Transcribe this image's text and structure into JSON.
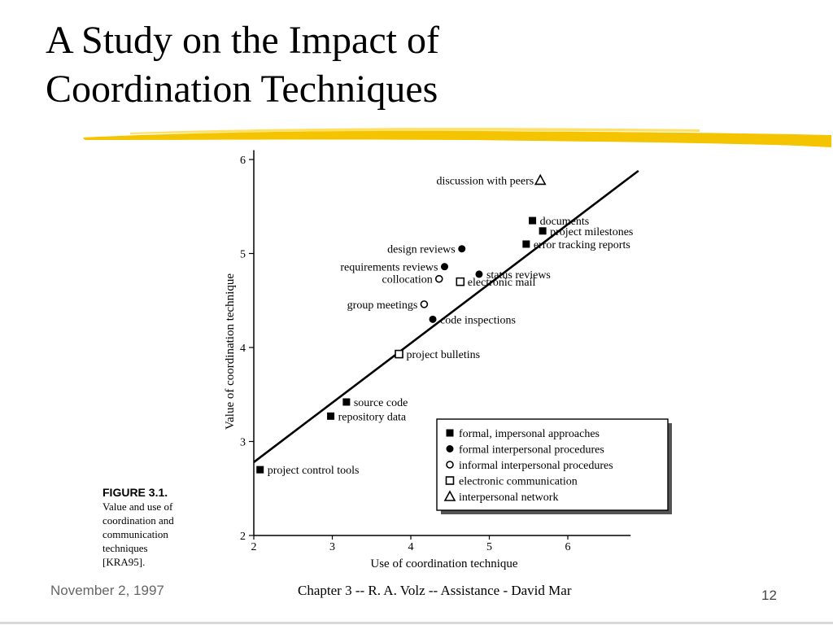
{
  "slide": {
    "title_line1": "A Study on the Impact of",
    "title_line2": "Coordination Techniques"
  },
  "colors": {
    "brush": "#f5c400",
    "brush_light": "#ffe066",
    "ink": "#000000"
  },
  "figure": {
    "caption_head": "FIGURE 3.1.",
    "caption_lines": [
      "Value and use of",
      "coordination and",
      "communication",
      "techniques",
      "[KRA95]."
    ]
  },
  "footer": {
    "date": "November 2, 1997",
    "center": "Chapter 3 -- R. A. Volz -- Assistance - David Mar",
    "page": "12"
  },
  "chart_data": {
    "type": "scatter",
    "xlabel": "Use of coordination technique",
    "ylabel": "Value of coordination technique",
    "xlim": [
      2,
      6.8
    ],
    "ylim": [
      2,
      6.1
    ],
    "x_ticks": [
      2,
      3,
      4,
      5,
      6
    ],
    "y_ticks": [
      2,
      3,
      4,
      5,
      6
    ],
    "trend_line": {
      "x": [
        2,
        6.9
      ],
      "y": [
        2.78,
        5.88
      ]
    },
    "legend": [
      {
        "marker": "square-filled",
        "label": "formal, impersonal approaches"
      },
      {
        "marker": "circle-filled",
        "label": "formal interpersonal procedures"
      },
      {
        "marker": "circle-open",
        "label": "informal interpersonal procedures"
      },
      {
        "marker": "square-open",
        "label": "electronic communication"
      },
      {
        "marker": "triangle-open",
        "label": "interpersonal network"
      }
    ],
    "points": [
      {
        "label": "discussion with peers",
        "x": 5.65,
        "y": 5.78,
        "marker": "triangle-open",
        "label_side": "left"
      },
      {
        "label": "documents",
        "x": 5.55,
        "y": 5.35,
        "marker": "square-filled",
        "label_side": "right"
      },
      {
        "label": "project milestones",
        "x": 5.68,
        "y": 5.24,
        "marker": "square-filled",
        "label_side": "right"
      },
      {
        "label": "error tracking reports",
        "x": 5.47,
        "y": 5.1,
        "marker": "square-filled",
        "label_side": "right"
      },
      {
        "label": "design reviews",
        "x": 4.65,
        "y": 5.05,
        "marker": "circle-filled",
        "label_side": "left"
      },
      {
        "label": "requirements reviews",
        "x": 4.43,
        "y": 4.86,
        "marker": "circle-filled",
        "label_side": "left"
      },
      {
        "label": "status reviews",
        "x": 4.87,
        "y": 4.78,
        "marker": "circle-filled",
        "label_side": "right"
      },
      {
        "label": "collocation",
        "x": 4.36,
        "y": 4.73,
        "marker": "circle-open",
        "label_side": "left"
      },
      {
        "label": "electronic mail",
        "x": 4.63,
        "y": 4.7,
        "marker": "square-open",
        "label_side": "right"
      },
      {
        "label": "group meetings",
        "x": 4.17,
        "y": 4.46,
        "marker": "circle-open",
        "label_side": "left"
      },
      {
        "label": "code inspections",
        "x": 4.28,
        "y": 4.3,
        "marker": "circle-filled",
        "label_side": "right"
      },
      {
        "label": "project bulletins",
        "x": 3.85,
        "y": 3.93,
        "marker": "square-open",
        "label_side": "right"
      },
      {
        "label": "source code",
        "x": 3.18,
        "y": 3.42,
        "marker": "square-filled",
        "label_side": "right"
      },
      {
        "label": "repository data",
        "x": 2.98,
        "y": 3.27,
        "marker": "square-filled",
        "label_side": "right"
      },
      {
        "label": "project control tools",
        "x": 2.08,
        "y": 2.7,
        "marker": "square-filled",
        "label_side": "right"
      }
    ]
  }
}
